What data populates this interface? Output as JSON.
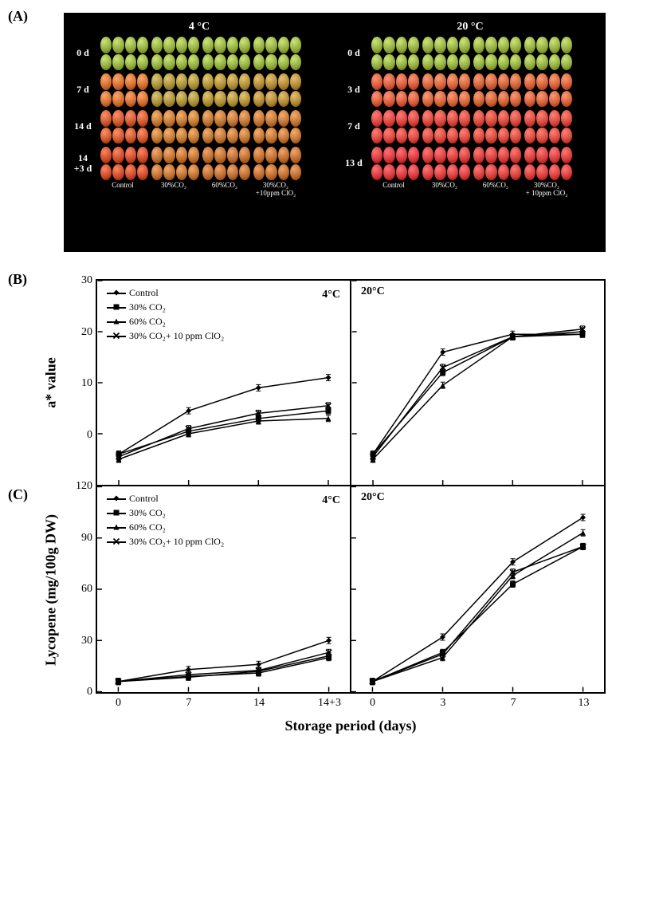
{
  "panel_labels": {
    "A": "(A)",
    "B": "(B)",
    "C": "(C)"
  },
  "photo_panel": {
    "left": {
      "temp_label": "4 °C",
      "days": [
        "0 d",
        "7 d",
        "14 d",
        "14\n+3 d"
      ],
      "row_colors": {
        "0": [
          "#8fa83b",
          "#8fa83b",
          "#8fa83b",
          "#8fa83b"
        ],
        "1": [
          "#cb6a2b",
          "#a38b35",
          "#a88a32",
          "#aa8432"
        ],
        "2": [
          "#c8542b",
          "#bb7530",
          "#b87130",
          "#b97030"
        ],
        "3": [
          "#c64826",
          "#b96c2e",
          "#b5682d",
          "#b6682c"
        ]
      },
      "treatments": [
        "Control",
        "30%CO₂",
        "60%CO₂",
        "30%CO₂\n+10ppm ClO₂"
      ]
    },
    "right": {
      "temp_label": "20 °C",
      "days": [
        "0 d",
        "3 d",
        "7 d",
        "13 d"
      ],
      "row_colors": {
        "0": [
          "#8fa83b",
          "#8fa83b",
          "#8fa83b",
          "#8fa83b"
        ],
        "1": [
          "#d35638",
          "#cf6038",
          "#c75d35",
          "#ce5d36"
        ],
        "2": [
          "#d7413a",
          "#d54539",
          "#d14639",
          "#d44539"
        ],
        "3": [
          "#d43539",
          "#d23a39",
          "#cf3b38",
          "#d13a38"
        ]
      },
      "treatments": [
        "Control",
        "30%CO₂",
        "60%CO₂",
        "30%CO₂\n+ 10ppm ClO₂"
      ]
    }
  },
  "chart_common": {
    "x_axis_title": "Storage period (days)",
    "series": [
      {
        "name": "Control",
        "marker": "diamond"
      },
      {
        "name": "30% CO₂",
        "marker": "square"
      },
      {
        "name": "60% CO₂",
        "marker": "triangle"
      },
      {
        "name": "30% CO₂+ 10 ppm ClO₂",
        "marker": "x"
      }
    ],
    "line_color": "#000000",
    "marker_fill": "#000000",
    "line_width": 1.5,
    "marker_size": 7
  },
  "chart_B": {
    "y_axis_title": "a* value",
    "ylim": [
      -10,
      30
    ],
    "ytick_step": 10,
    "yticks": [
      0,
      10,
      20,
      30
    ],
    "left": {
      "temp_label": "4°C",
      "x_labels": [
        "0",
        "7",
        "14",
        "14+3"
      ],
      "x_index": [
        0,
        1,
        2,
        3
      ],
      "series_y": {
        "Control": [
          -4,
          4.5,
          9,
          11
        ],
        "30% CO₂": [
          -4,
          0.5,
          3,
          4.5
        ],
        "60% CO₂": [
          -5,
          0,
          2.5,
          3
        ],
        "30% CO₂+ 10 ppm ClO₂": [
          -4.5,
          1,
          4,
          5.5
        ]
      }
    },
    "right": {
      "temp_label": "20°C",
      "x_labels": [
        "0",
        "3",
        "7",
        "13"
      ],
      "x_index": [
        0,
        1,
        2,
        3
      ],
      "series_y": {
        "Control": [
          -4,
          16,
          19.5,
          19.5
        ],
        "30% CO₂": [
          -4,
          12,
          19,
          19.5
        ],
        "60% CO₂": [
          -5,
          9.5,
          19,
          20
        ],
        "30% CO₂+ 10 ppm ClO₂": [
          -4.5,
          13,
          19,
          20.5
        ]
      }
    }
  },
  "chart_C": {
    "y_axis_title": "Lycopene (mg/100g DW)",
    "ylim": [
      0,
      120
    ],
    "ytick_step": 30,
    "yticks": [
      0,
      30,
      60,
      90,
      120
    ],
    "left": {
      "temp_label": "4°C",
      "x_labels": [
        "0",
        "7",
        "14",
        "14+3"
      ],
      "x_index": [
        0,
        1,
        2,
        3
      ],
      "series_y": {
        "Control": [
          6,
          13,
          16,
          30
        ],
        "30% CO₂": [
          6,
          9,
          11,
          20
        ],
        "60% CO₂": [
          6,
          8.5,
          12,
          21
        ],
        "30% CO₂+ 10 ppm ClO₂": [
          6,
          10,
          12.5,
          23
        ]
      }
    },
    "right": {
      "temp_label": "20°C",
      "x_labels": [
        "0",
        "3",
        "7",
        "13"
      ],
      "x_index": [
        0,
        1,
        2,
        3
      ],
      "series_y": {
        "Control": [
          6,
          32,
          76,
          102
        ],
        "30% CO₂": [
          6,
          23,
          63,
          85
        ],
        "60% CO₂": [
          6,
          20,
          68,
          93
        ],
        "30% CO₂+ 10 ppm ClO₂": [
          6,
          22,
          70,
          85
        ]
      }
    }
  }
}
